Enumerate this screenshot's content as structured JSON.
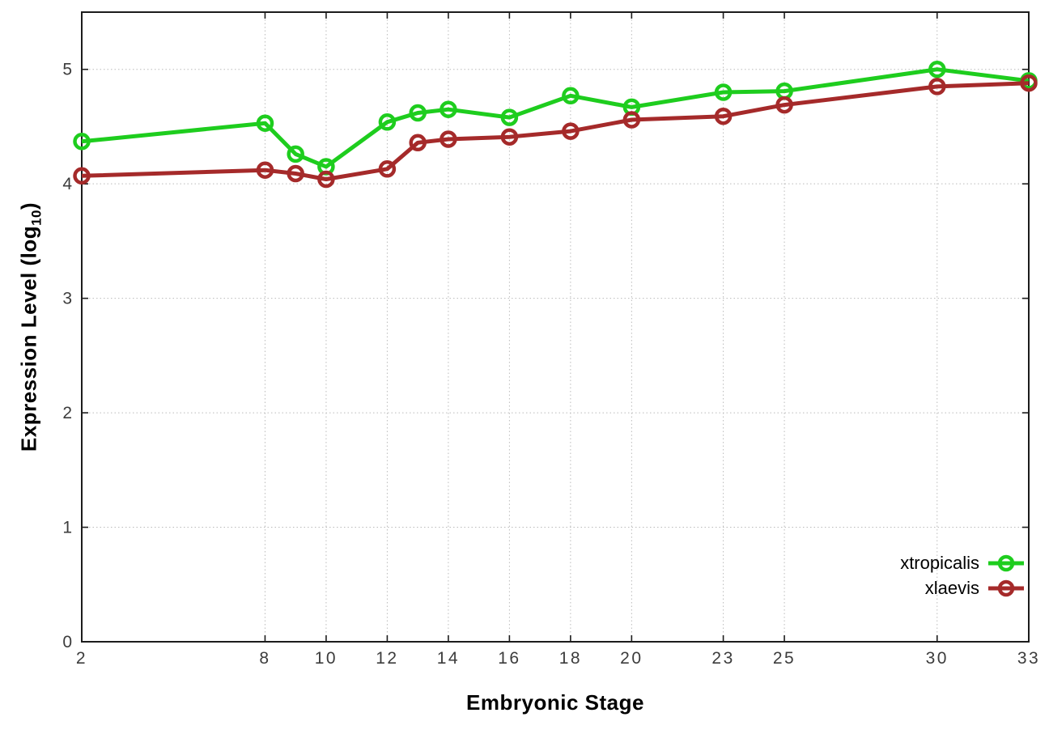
{
  "chart_data": {
    "type": "line",
    "title": "",
    "xlabel": "Embryonic Stage",
    "ylabel": {
      "prefix": "Expression Level (log",
      "sub": "10",
      "suffix": ")"
    },
    "x": [
      2,
      8,
      9,
      10,
      12,
      13,
      14,
      16,
      18,
      20,
      23,
      25,
      30,
      33
    ],
    "xticks": [
      2,
      8,
      10,
      12,
      14,
      16,
      18,
      20,
      23,
      25,
      30,
      33
    ],
    "yticks": [
      0,
      1,
      2,
      3,
      4,
      5
    ],
    "xlim": [
      2,
      33
    ],
    "ylim": [
      0,
      5.5
    ],
    "grid": true,
    "legend_position": "bottom-right-inside",
    "series": [
      {
        "name": "xtropicalis",
        "color": "#1ecd1e",
        "values": [
          4.37,
          4.53,
          4.26,
          4.15,
          4.54,
          4.62,
          4.65,
          4.58,
          4.77,
          4.67,
          4.8,
          4.81,
          5.0,
          4.9
        ]
      },
      {
        "name": "xlaevis",
        "color": "#a52a2a",
        "values": [
          4.07,
          4.12,
          4.09,
          4.04,
          4.13,
          4.36,
          4.39,
          4.41,
          4.46,
          4.56,
          4.59,
          4.69,
          4.85,
          4.88
        ]
      }
    ],
    "colors": {
      "background": "#ffffff",
      "border": "#1c1c1c",
      "grid": "#bbbbbb",
      "tick_text": "#3c3c3c",
      "axis_title": "#000000"
    }
  }
}
